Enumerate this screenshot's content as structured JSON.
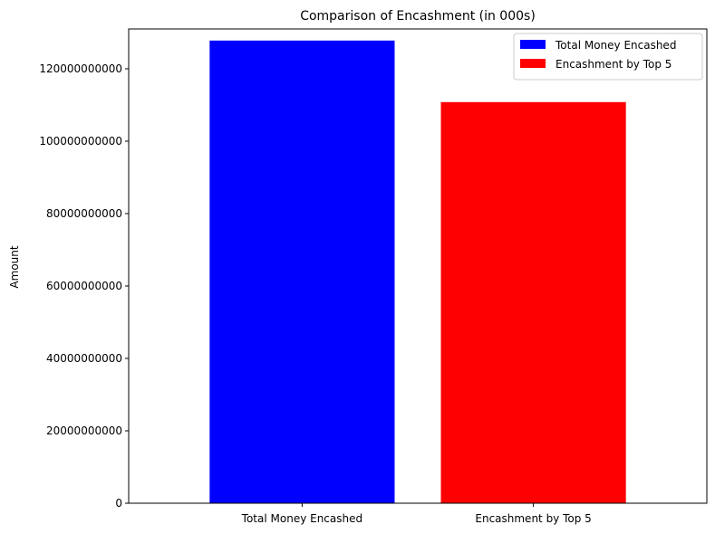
{
  "chart_data": {
    "type": "bar",
    "title": "Comparison of Encashment (in 000s)",
    "xlabel": "",
    "ylabel": "Amount",
    "categories": [
      "Total Money Encashed",
      "Encashment by Top 5"
    ],
    "values": [
      127800000000,
      110800000000
    ],
    "colors": [
      "#0000ff",
      "#ff0000"
    ],
    "ylim": [
      0,
      131000000000
    ],
    "yticks": [
      0,
      20000000000,
      40000000000,
      60000000000,
      80000000000,
      100000000000,
      120000000000
    ],
    "ytick_labels": [
      "0",
      "20000000000",
      "40000000000",
      "60000000000",
      "80000000000",
      "100000000000",
      "120000000000"
    ],
    "grid": false,
    "legend": {
      "position": "top-right",
      "entries": [
        {
          "label": "Total Money Encashed",
          "color": "#0000ff"
        },
        {
          "label": "Encashment by Top 5",
          "color": "#ff0000"
        }
      ]
    }
  }
}
